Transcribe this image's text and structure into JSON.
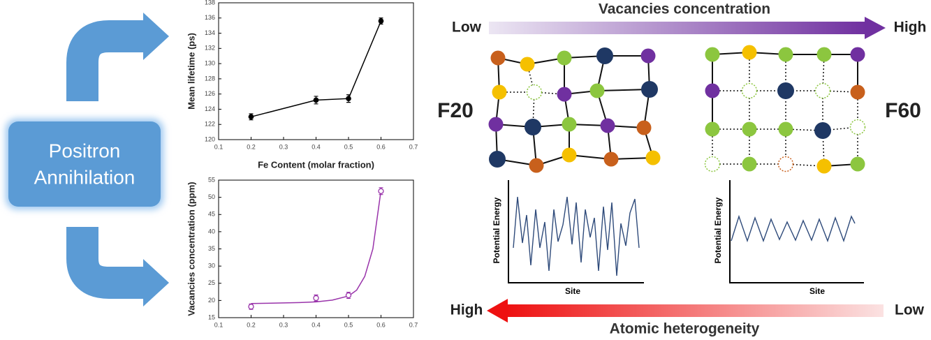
{
  "left_box": {
    "lines": [
      "Positron",
      "Annihilation"
    ]
  },
  "chart_data": [
    {
      "type": "line",
      "x": [
        0.2,
        0.4,
        0.5,
        0.6
      ],
      "values": [
        123,
        125.2,
        125.4,
        135.6
      ],
      "errors": [
        0.4,
        0.5,
        0.5,
        0.4
      ],
      "color": "#000000",
      "xlim": [
        0.1,
        0.7
      ],
      "xticks": [
        0.1,
        0.2,
        0.3,
        0.4,
        0.5,
        0.6,
        0.7
      ],
      "ylim": [
        120,
        138
      ],
      "yticks": [
        120,
        122,
        124,
        126,
        128,
        130,
        132,
        134,
        136,
        138
      ],
      "xlabel": "Fe Content (molar fraction)",
      "ylabel": "Mean lifetime (ps)"
    },
    {
      "type": "scatter",
      "x": [
        0.2,
        0.4,
        0.5,
        0.6
      ],
      "values": [
        18.2,
        20.7,
        21.5,
        51.8
      ],
      "errors": [
        0.8,
        0.9,
        0.9,
        1
      ],
      "color": "#9933aa",
      "fit": {
        "x": [
          0.2,
          0.25,
          0.3,
          0.35,
          0.4,
          0.45,
          0.5,
          0.525,
          0.55,
          0.575,
          0.6
        ],
        "values": [
          19.1,
          19.2,
          19.3,
          19.4,
          19.6,
          20.1,
          21.3,
          23,
          27,
          35,
          52
        ]
      },
      "xlim": [
        0.1,
        0.7
      ],
      "xticks": [
        0.1,
        0.2,
        0.3,
        0.4,
        0.5,
        0.6,
        0.7
      ],
      "ylim": [
        15,
        55
      ],
      "yticks": [
        15,
        20,
        25,
        30,
        35,
        40,
        45,
        50,
        55
      ],
      "ylabel": "Vacancies concentration (ppm)"
    }
  ],
  "top_scale": {
    "title": "Vacancies concentration",
    "left": "Low",
    "right": "High"
  },
  "samples": [
    "F20",
    "F60"
  ],
  "energy_plots": {
    "ylabel": "Potential Energy",
    "xlabel": "Site"
  },
  "bottom_scale": {
    "title": "Atomic heterogeneity",
    "left": "High",
    "right": "Low"
  }
}
